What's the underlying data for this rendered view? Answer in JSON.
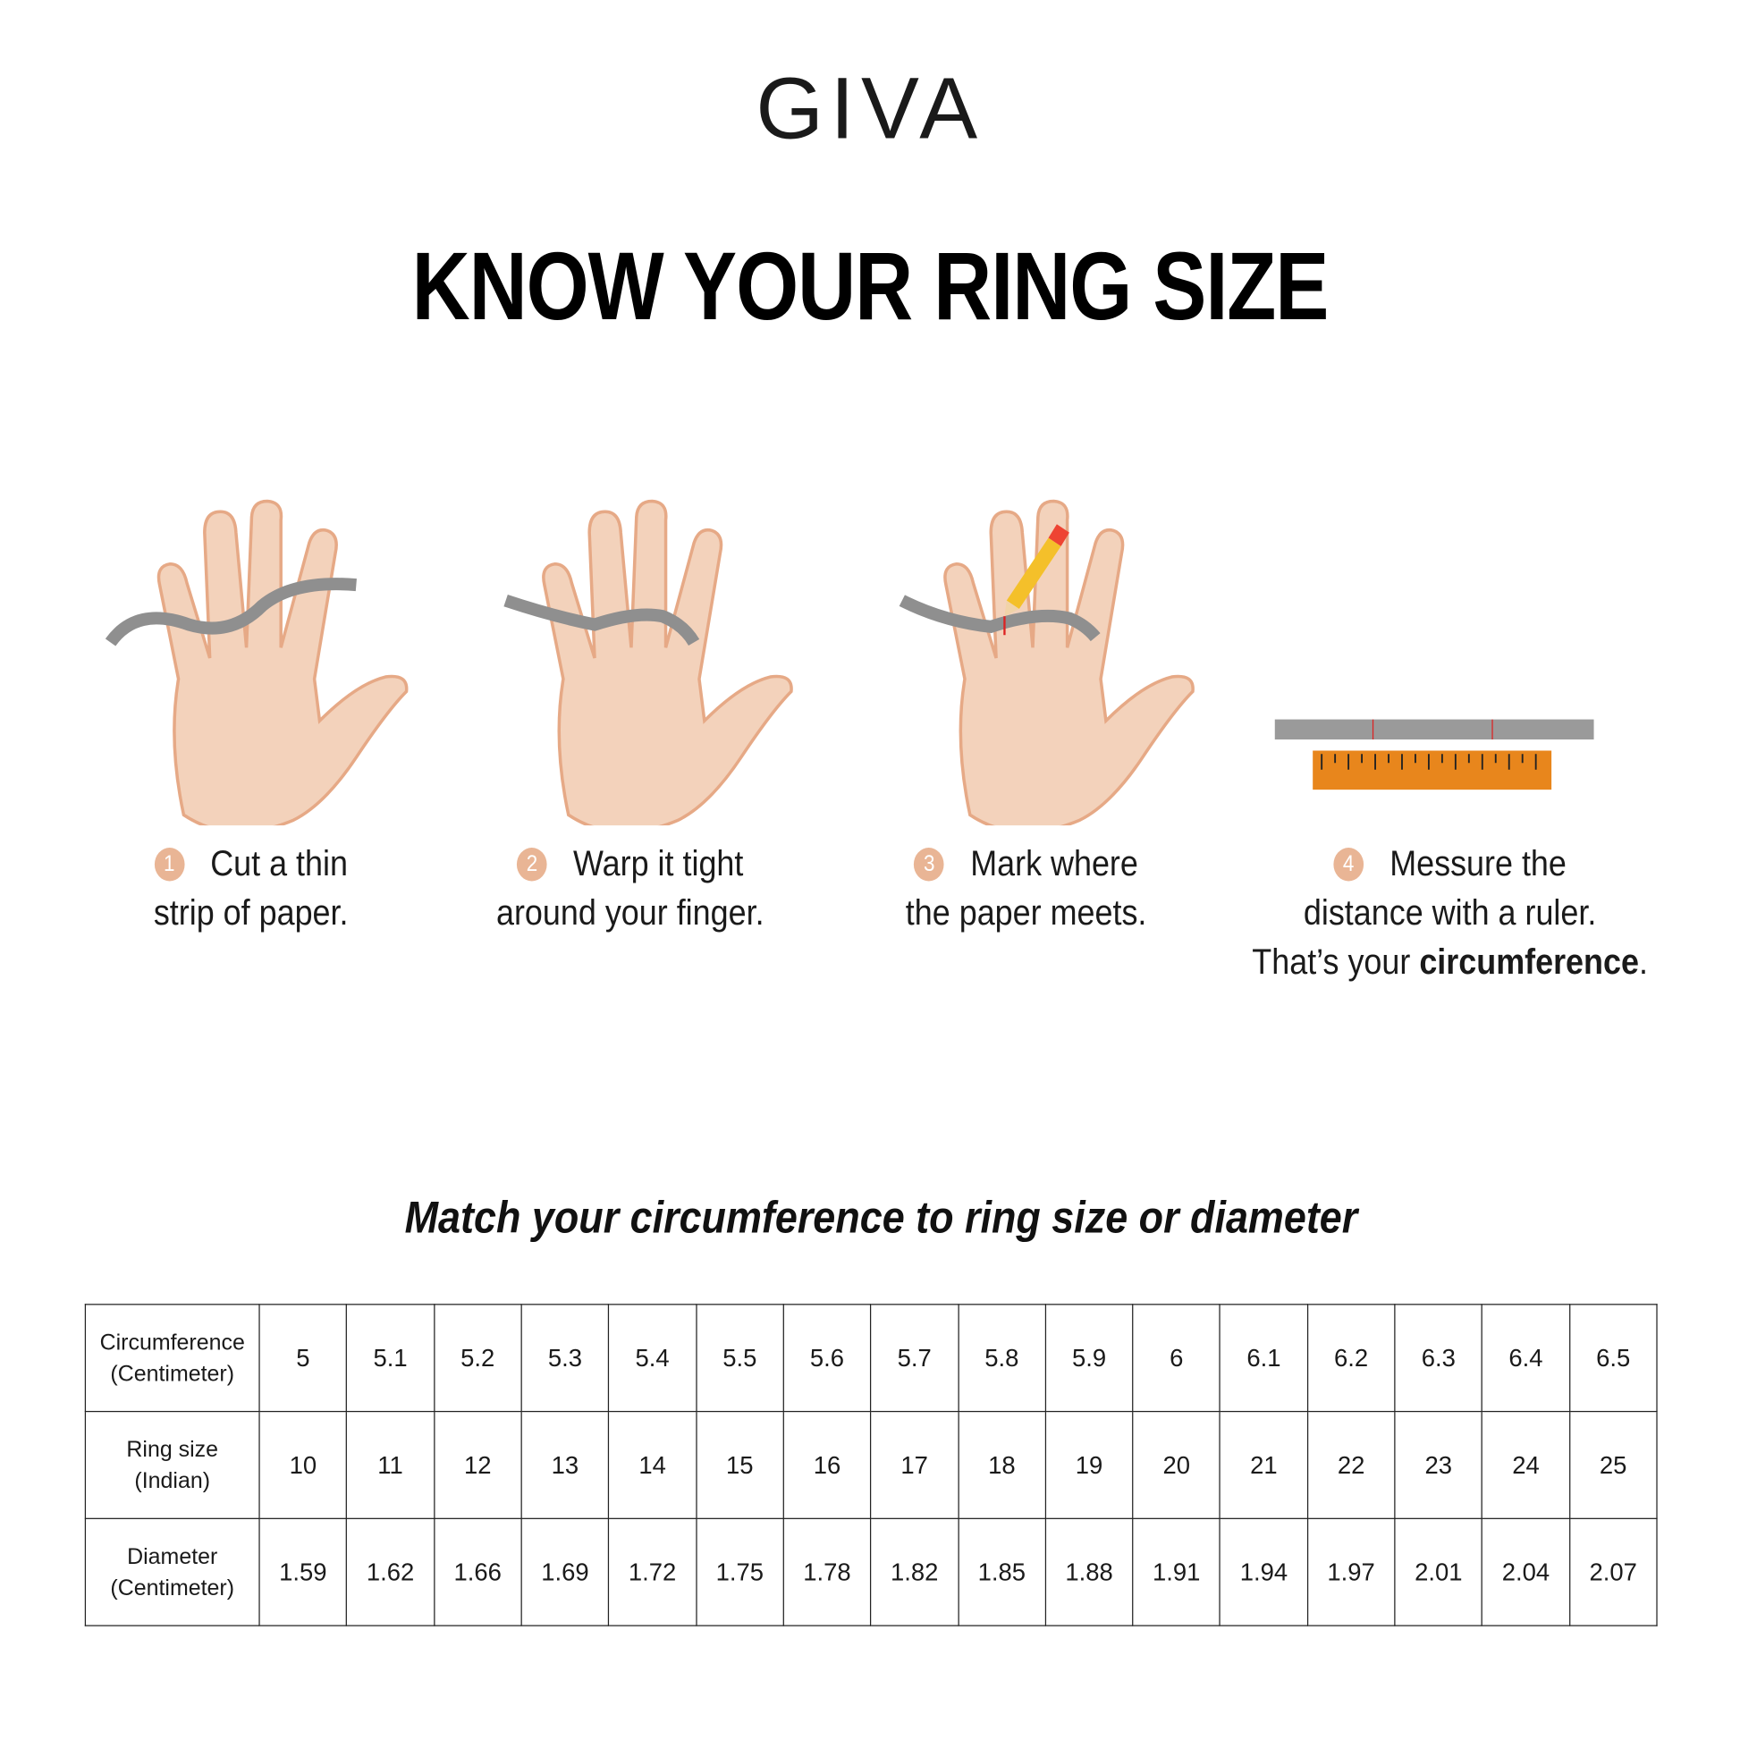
{
  "brand": {
    "logo": "GIVA"
  },
  "title": "KNOW YOUR RING SIZE",
  "steps": [
    {
      "number": "1",
      "line1": "Cut a thin",
      "line2": "strip of paper."
    },
    {
      "number": "2",
      "line1": "Warp it tight",
      "line2": "around your finger."
    },
    {
      "number": "3",
      "line1": "Mark where",
      "line2": "the paper meets."
    },
    {
      "number": "4",
      "line1": "Messure the",
      "line2": "distance with a ruler.",
      "line3_prefix": "That’s your ",
      "line3_bold": "circumference",
      "line3_suffix": "."
    }
  ],
  "subtitle": "Match your circumference to ring size or diameter",
  "table": {
    "rows": [
      {
        "label1": "Circumference",
        "label2": "(Centimeter)",
        "values": [
          "5",
          "5.1",
          "5.2",
          "5.3",
          "5.4",
          "5.5",
          "5.6",
          "5.7",
          "5.8",
          "5.9",
          "6",
          "6.1",
          "6.2",
          "6.3",
          "6.4",
          "6.5"
        ]
      },
      {
        "label1": "Ring size",
        "label2": "(Indian)",
        "values": [
          "10",
          "11",
          "12",
          "13",
          "14",
          "15",
          "16",
          "17",
          "18",
          "19",
          "20",
          "21",
          "22",
          "23",
          "24",
          "25"
        ]
      },
      {
        "label1": "Diameter",
        "label2": "(Centimeter)",
        "values": [
          "1.59",
          "1.62",
          "1.66",
          "1.69",
          "1.72",
          "1.75",
          "1.78",
          "1.82",
          "1.85",
          "1.88",
          "1.91",
          "1.94",
          "1.97",
          "2.01",
          "2.04",
          "2.07"
        ]
      }
    ]
  },
  "colors": {
    "skin": "#f3d2bb",
    "skin_shadow": "#e6a986",
    "paper": "#9a9a9a",
    "ruler": "#e8861c",
    "step_badge": "#e9b595"
  }
}
